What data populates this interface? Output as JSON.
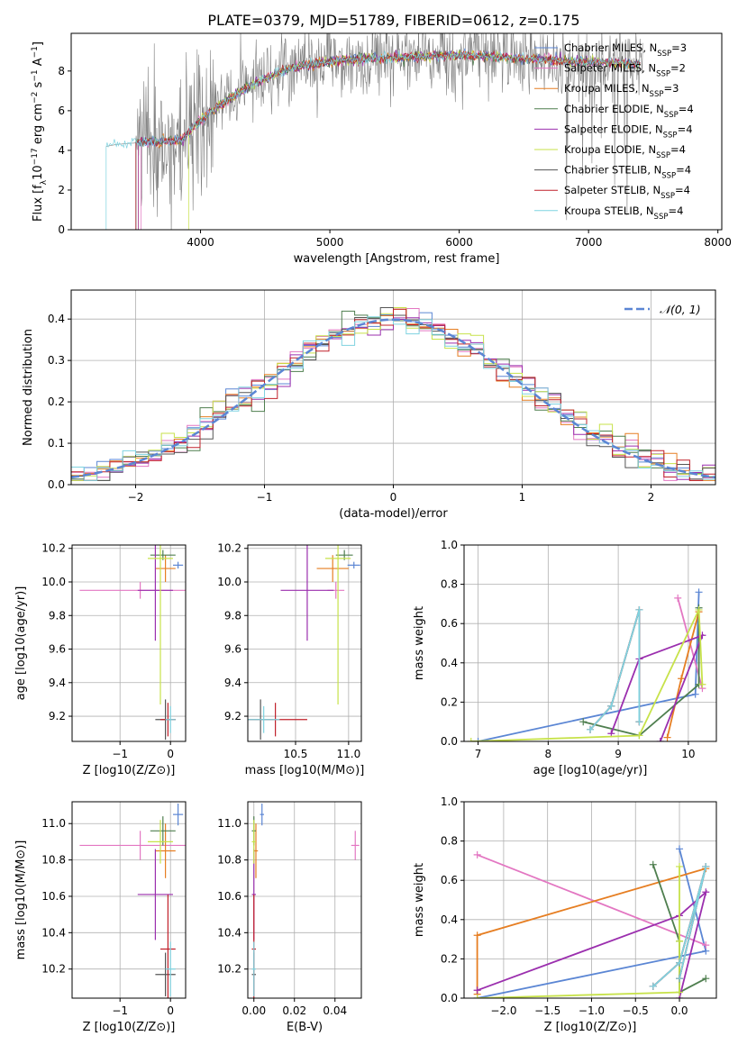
{
  "figure": {
    "title": "PLATE=0379, MJD=51789, FIBERID=0612, z=0.175",
    "colors": {
      "Chabrier MILES": "#5b86d4",
      "Salpeter MILES": "#e377c2",
      "Kroupa MILES": "#e67e22",
      "Chabrier ELODIE": "#4f7f4f",
      "Salpeter ELODIE": "#9b2fae",
      "Kroupa ELODIE": "#c7e24a",
      "Chabrier STELIB": "#555555",
      "Salpeter STELIB": "#c0202a",
      "Kroupa STELIB": "#7fd3e0",
      "data": "#808080",
      "normal": "#5b86d4"
    }
  },
  "chart_data": [
    {
      "id": "spectrum",
      "type": "line",
      "xlabel": "wavelength [Angstrom, rest frame]",
      "ylabel": "Flux [f_λ10^-17 erg cm^-2 s^-1 A^-1]",
      "xlim": [
        3000,
        8030
      ],
      "ylim": [
        0,
        9.9
      ],
      "xticks": [
        4000,
        5000,
        6000,
        7000,
        8000
      ],
      "yticks": [
        0,
        2,
        4,
        6,
        8
      ],
      "grid": false,
      "legend": "upper right",
      "series": [
        {
          "name": "Chabrier MILES, N_SSP=3",
          "label_main": "Chabrier MILES, N",
          "label_sub": "SSP",
          "label_tail": "=3"
        },
        {
          "name": "Salpeter MILES, N_SSP=2",
          "label_main": "Salpeter MILES, N",
          "label_sub": "SSP",
          "label_tail": "=2"
        },
        {
          "name": "Kroupa MILES, N_SSP=3",
          "label_main": "Kroupa MILES, N",
          "label_sub": "SSP",
          "label_tail": "=3"
        },
        {
          "name": "Chabrier ELODIE, N_SSP=4",
          "label_main": "Chabrier ELODIE, N",
          "label_sub": "SSP",
          "label_tail": "=4"
        },
        {
          "name": "Salpeter ELODIE, N_SSP=4",
          "label_main": "Salpeter ELODIE, N",
          "label_sub": "SSP",
          "label_tail": "=4"
        },
        {
          "name": "Kroupa ELODIE, N_SSP=4",
          "label_main": "Kroupa ELODIE, N",
          "label_sub": "SSP",
          "label_tail": "=4"
        },
        {
          "name": "Chabrier STELIB, N_SSP=4",
          "label_main": "Chabrier STELIB, N",
          "label_sub": "SSP",
          "label_tail": "=4"
        },
        {
          "name": "Salpeter STELIB, N_SSP=4",
          "label_main": "Salpeter STELIB, N",
          "label_sub": "SSP",
          "label_tail": "=4"
        },
        {
          "name": "Kroupa STELIB, N_SSP=4",
          "label_main": "Kroupa STELIB, N",
          "label_sub": "SSP",
          "label_tail": "=4"
        }
      ],
      "model_x": [
        3270,
        3350,
        3450,
        3550,
        3700,
        3850,
        3950,
        4050,
        4200,
        4400,
        4600,
        4800,
        5000,
        5200,
        5400,
        5600,
        5800,
        6000,
        6200,
        6400,
        6600,
        6800,
        7000,
        7200,
        7400
      ],
      "model_y": [
        4.2,
        4.3,
        4.35,
        4.4,
        4.45,
        4.5,
        5.2,
        5.8,
        6.5,
        7.3,
        7.9,
        8.3,
        8.5,
        8.6,
        8.65,
        8.7,
        8.75,
        8.8,
        8.75,
        8.65,
        8.6,
        8.5,
        8.45,
        8.4,
        8.35
      ]
    },
    {
      "id": "residuals",
      "type": "line",
      "xlabel": "(data-model)/error",
      "ylabel": "Normed distribution",
      "xlim": [
        -2.5,
        2.5
      ],
      "ylim": [
        0,
        0.47
      ],
      "xticks": [
        -2,
        -1,
        0,
        1,
        2
      ],
      "yticks": [
        0.0,
        0.1,
        0.2,
        0.3,
        0.4
      ],
      "grid": true,
      "legend": "upper right",
      "legend_label": "𝒩(0, 1)",
      "normal_mu": 0,
      "normal_sigma": 1
    },
    {
      "id": "age-vs-Z",
      "type": "scatter",
      "xlabel": "Z [log10(Z/Z⊙)]",
      "ylabel": "age  [log10(age/yr)]",
      "xlim": [
        -1.95,
        0.3
      ],
      "ylim": [
        9.05,
        10.22
      ],
      "xticks": [
        -1,
        0
      ],
      "yticks": [
        9.2,
        9.4,
        9.6,
        9.8,
        10.0,
        10.2
      ],
      "grid": true
    },
    {
      "id": "age-vs-mass",
      "type": "scatter",
      "xlabel": "mass [log10(M/M⊙)]",
      "ylabel": "",
      "xlim": [
        10.05,
        11.12
      ],
      "ylim": [
        9.05,
        10.22
      ],
      "xticks": [
        10.5,
        11.0
      ],
      "yticks": [
        9.2,
        9.4,
        9.6,
        9.8,
        10.0,
        10.2
      ],
      "grid": true
    },
    {
      "id": "weight-vs-age",
      "type": "line",
      "xlabel": "age  [log10(age/yr)]",
      "ylabel": "mass weight",
      "xlim": [
        6.8,
        10.4
      ],
      "ylim": [
        0,
        1.0
      ],
      "xticks": [
        7,
        8,
        9,
        10
      ],
      "yticks": [
        0.0,
        0.2,
        0.4,
        0.6,
        0.8,
        1.0
      ],
      "grid": true
    },
    {
      "id": "mass-vs-Z",
      "type": "scatter",
      "xlabel": "Z [log10(Z/Z⊙)]",
      "ylabel": "mass [log10(M/M⊙)]",
      "xlim": [
        -1.95,
        0.3
      ],
      "ylim": [
        10.04,
        11.12
      ],
      "xticks": [
        -1,
        0
      ],
      "yticks": [
        10.2,
        10.4,
        10.6,
        10.8,
        11.0
      ],
      "grid": true
    },
    {
      "id": "mass-vs-EBV",
      "type": "scatter",
      "xlabel": "E(B-V)",
      "ylabel": "",
      "xlim": [
        -0.003,
        0.053
      ],
      "ylim": [
        10.04,
        11.12
      ],
      "xticks": [
        0.0,
        0.02,
        0.04
      ],
      "yticks": [
        10.2,
        10.4,
        10.6,
        10.8,
        11.0
      ],
      "grid": true
    },
    {
      "id": "weight-vs-Z",
      "type": "line",
      "xlabel": "Z [log10(Z/Z⊙)]",
      "ylabel": "mass weight",
      "xlim": [
        -2.45,
        0.42
      ],
      "ylim": [
        0,
        1.0
      ],
      "xticks": [
        -2.0,
        -1.5,
        -1.0,
        -0.5,
        0.0
      ],
      "yticks": [
        0.0,
        0.2,
        0.4,
        0.6,
        0.8,
        1.0
      ],
      "grid": true
    }
  ],
  "fits": [
    {
      "name": "Chabrier MILES",
      "Z": 0.15,
      "Z_err": 0.1,
      "age": 10.1,
      "age_err": 0.02,
      "mass": 11.05,
      "mass_err": 0.06,
      "ebv": 0.004,
      "ebv_err": 0.001
    },
    {
      "name": "Salpeter MILES",
      "Z": -0.6,
      "Z_err": 1.2,
      "age": 9.95,
      "age_err": 0.05,
      "mass": 10.88,
      "mass_err": 0.08,
      "ebv": 0.05,
      "ebv_err": 0.002
    },
    {
      "name": "Kroupa MILES",
      "Z": -0.1,
      "Z_err": 0.2,
      "age": 10.08,
      "age_err": 0.08,
      "mass": 10.85,
      "mass_err": 0.15,
      "ebv": 0.001,
      "ebv_err": 0.001
    },
    {
      "name": "Chabrier ELODIE",
      "Z": -0.15,
      "Z_err": 0.25,
      "age": 10.16,
      "age_err": 0.03,
      "mass": 10.96,
      "mass_err": 0.08,
      "ebv": 0.0,
      "ebv_err": 0.001
    },
    {
      "name": "Salpeter ELODIE",
      "Z": -0.3,
      "Z_err": 0.35,
      "age": 9.95,
      "age_err": 0.3,
      "mass": 10.61,
      "mass_err": 0.25,
      "ebv": 0.0,
      "ebv_err": 0.001
    },
    {
      "name": "Kroupa ELODIE",
      "Z": -0.2,
      "Z_err": 0.25,
      "age": 10.14,
      "age_err": 0.87,
      "mass": 10.9,
      "mass_err": 0.12,
      "ebv": 0.0,
      "ebv_err": 0.001
    },
    {
      "name": "Chabrier STELIB",
      "Z": -0.1,
      "Z_err": 0.2,
      "age": 9.18,
      "age_err": 0.12,
      "mass": 10.17,
      "mass_err": 0.12,
      "ebv": 0.0,
      "ebv_err": 0.001
    },
    {
      "name": "Salpeter STELIB",
      "Z": -0.05,
      "Z_err": 0.15,
      "age": 9.18,
      "age_err": 0.1,
      "mass": 10.31,
      "mass_err": 0.3,
      "ebv": 0.0,
      "ebv_err": 0.001
    },
    {
      "name": "Kroupa STELIB",
      "Z": 0.0,
      "Z_err": 0.1,
      "age": 9.18,
      "age_err": 0.08,
      "mass": 10.2,
      "mass_err": 0.15,
      "ebv": 0.0,
      "ebv_err": 0.001
    }
  ],
  "weights": [
    {
      "name": "Chabrier MILES",
      "age": [
        7.0,
        10.1,
        10.15
      ],
      "Z": [
        -2.3,
        0.3,
        0.0
      ],
      "w": [
        0.0,
        0.24,
        0.76
      ]
    },
    {
      "name": "Salpeter MILES",
      "age": [
        9.85,
        10.2
      ],
      "Z": [
        -2.3,
        0.3
      ],
      "w": [
        0.73,
        0.27
      ]
    },
    {
      "name": "Kroupa MILES",
      "age": [
        9.7,
        9.9,
        10.15
      ],
      "Z": [
        -2.3,
        -2.3,
        0.3
      ],
      "w": [
        0.02,
        0.32,
        0.66
      ]
    },
    {
      "name": "Chabrier ELODIE",
      "age": [
        8.5,
        9.3,
        10.15,
        10.15
      ],
      "Z": [
        0.3,
        0.0,
        0.0,
        -0.3
      ],
      "w": [
        0.1,
        0.03,
        0.29,
        0.68
      ]
    },
    {
      "name": "Salpeter ELODIE",
      "age": [
        8.9,
        9.3,
        10.2,
        9.6
      ],
      "Z": [
        -2.3,
        0.0,
        0.3,
        0.0
      ],
      "w": [
        0.04,
        0.42,
        0.54,
        0.0
      ]
    },
    {
      "name": "Kroupa ELODIE",
      "age": [
        6.9,
        9.3,
        10.15,
        10.2
      ],
      "Z": [
        -2.3,
        0.0,
        0.0,
        0.0
      ],
      "w": [
        0.0,
        0.03,
        0.67,
        0.29
      ]
    },
    {
      "name": "Chabrier STELIB",
      "age": [
        8.6,
        8.9,
        9.3,
        9.3
      ],
      "Z": [
        -0.3,
        0.0,
        0.3,
        0.0
      ],
      "w": [
        0.06,
        0.18,
        0.67,
        0.1
      ]
    },
    {
      "name": "Salpeter STELIB",
      "age": [
        8.6,
        8.9,
        9.3,
        9.3
      ],
      "Z": [
        -0.3,
        0.0,
        0.3,
        0.0
      ],
      "w": [
        0.06,
        0.18,
        0.67,
        0.1
      ]
    },
    {
      "name": "Kroupa STELIB",
      "age": [
        8.6,
        8.9,
        9.3,
        9.3
      ],
      "Z": [
        -0.3,
        0.0,
        0.3,
        0.0
      ],
      "w": [
        0.06,
        0.18,
        0.67,
        0.1
      ]
    }
  ]
}
